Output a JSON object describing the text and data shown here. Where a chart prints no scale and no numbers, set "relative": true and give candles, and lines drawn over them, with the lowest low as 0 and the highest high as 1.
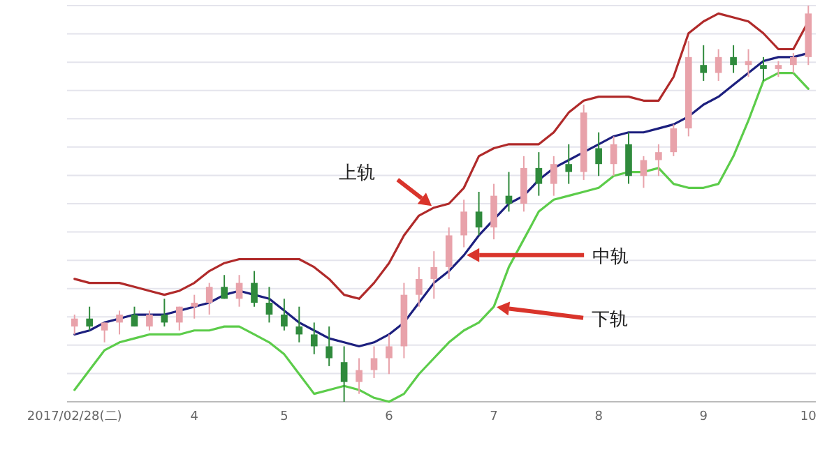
{
  "chart_data": {
    "type": "candlestick",
    "relative": true,
    "grid": "y",
    "categories": [
      "2017/02/28(二)",
      null,
      null,
      null,
      null,
      null,
      null,
      null,
      "4",
      null,
      null,
      null,
      null,
      null,
      "5",
      null,
      null,
      null,
      null,
      null,
      null,
      "6",
      null,
      null,
      null,
      null,
      null,
      null,
      "7",
      null,
      null,
      null,
      null,
      null,
      null,
      "8",
      null,
      null,
      null,
      null,
      null,
      null,
      "9",
      null,
      null,
      null,
      null,
      null,
      null,
      "10"
    ],
    "ohlc": [
      [
        0.19,
        0.22,
        0.17,
        0.21
      ],
      [
        0.21,
        0.24,
        0.18,
        0.19
      ],
      [
        0.18,
        0.2,
        0.15,
        0.2
      ],
      [
        0.2,
        0.23,
        0.17,
        0.22
      ],
      [
        0.22,
        0.24,
        0.19,
        0.19
      ],
      [
        0.19,
        0.23,
        0.18,
        0.22
      ],
      [
        0.22,
        0.26,
        0.19,
        0.2
      ],
      [
        0.2,
        0.24,
        0.18,
        0.24
      ],
      [
        0.24,
        0.27,
        0.21,
        0.25
      ],
      [
        0.25,
        0.3,
        0.22,
        0.29
      ],
      [
        0.29,
        0.32,
        0.26,
        0.26
      ],
      [
        0.26,
        0.32,
        0.24,
        0.3
      ],
      [
        0.3,
        0.33,
        0.24,
        0.25
      ],
      [
        0.25,
        0.29,
        0.2,
        0.22
      ],
      [
        0.22,
        0.26,
        0.18,
        0.19
      ],
      [
        0.19,
        0.24,
        0.15,
        0.17
      ],
      [
        0.17,
        0.2,
        0.12,
        0.14
      ],
      [
        0.14,
        0.19,
        0.09,
        0.11
      ],
      [
        0.1,
        0.14,
        0,
        0.05
      ],
      [
        0.05,
        0.11,
        0.02,
        0.08
      ],
      [
        0.08,
        0.14,
        0.06,
        0.11
      ],
      [
        0.11,
        0.17,
        0.07,
        0.14
      ],
      [
        0.14,
        0.3,
        0.11,
        0.27
      ],
      [
        0.27,
        0.34,
        0.24,
        0.31
      ],
      [
        0.31,
        0.38,
        0.26,
        0.34
      ],
      [
        0.34,
        0.44,
        0.31,
        0.42
      ],
      [
        0.42,
        0.51,
        0.39,
        0.48
      ],
      [
        0.48,
        0.53,
        0.42,
        0.44
      ],
      [
        0.44,
        0.55,
        0.41,
        0.52
      ],
      [
        0.52,
        0.58,
        0.48,
        0.5
      ],
      [
        0.5,
        0.62,
        0.48,
        0.59
      ],
      [
        0.59,
        0.63,
        0.52,
        0.55
      ],
      [
        0.55,
        0.62,
        0.52,
        0.6
      ],
      [
        0.6,
        0.65,
        0.55,
        0.58
      ],
      [
        0.58,
        0.75,
        0.56,
        0.73
      ],
      [
        0.64,
        0.68,
        0.57,
        0.6
      ],
      [
        0.6,
        0.67,
        0.57,
        0.65
      ],
      [
        0.65,
        0.68,
        0.55,
        0.57
      ],
      [
        0.57,
        0.62,
        0.54,
        0.61
      ],
      [
        0.61,
        0.65,
        0.57,
        0.63
      ],
      [
        0.63,
        0.7,
        0.62,
        0.69
      ],
      [
        0.69,
        0.91,
        0.67,
        0.87
      ],
      [
        0.85,
        0.9,
        0.81,
        0.83
      ],
      [
        0.83,
        0.89,
        0.81,
        0.87
      ],
      [
        0.87,
        0.9,
        0.83,
        0.85
      ],
      [
        0.85,
        0.89,
        0.82,
        0.86
      ],
      [
        0.85,
        0.87,
        0.81,
        0.84
      ],
      [
        0.84,
        0.86,
        0.82,
        0.85
      ],
      [
        0.85,
        0.88,
        0.83,
        0.87
      ],
      [
        0.87,
        1.0,
        0.85,
        0.98
      ]
    ],
    "series": [
      {
        "type": "line",
        "color": "#b02a2a",
        "values": [
          0.31,
          0.3,
          0.3,
          0.3,
          0.29,
          0.28,
          0.27,
          0.28,
          0.3,
          0.33,
          0.35,
          0.36,
          0.36,
          0.36,
          0.36,
          0.36,
          0.34,
          0.31,
          0.27,
          0.26,
          0.3,
          0.35,
          0.42,
          0.47,
          0.49,
          0.5,
          0.54,
          0.62,
          0.64,
          0.65,
          0.65,
          0.65,
          0.68,
          0.73,
          0.76,
          0.77,
          0.77,
          0.77,
          0.76,
          0.76,
          0.82,
          0.93,
          0.96,
          0.98,
          0.97,
          0.96,
          0.93,
          0.89,
          0.89,
          0.96
        ]
      },
      {
        "type": "line",
        "color": "#1c1f7e",
        "values": [
          0.17,
          0.18,
          0.2,
          0.21,
          0.22,
          0.22,
          0.22,
          0.23,
          0.24,
          0.25,
          0.27,
          0.28,
          0.27,
          0.26,
          0.23,
          0.2,
          0.18,
          0.16,
          0.15,
          0.14,
          0.15,
          0.17,
          0.2,
          0.25,
          0.3,
          0.33,
          0.37,
          0.42,
          0.46,
          0.5,
          0.52,
          0.56,
          0.59,
          0.61,
          0.63,
          0.65,
          0.67,
          0.68,
          0.68,
          0.69,
          0.7,
          0.72,
          0.75,
          0.77,
          0.8,
          0.83,
          0.86,
          0.87,
          0.87,
          0.88
        ]
      },
      {
        "type": "line",
        "color": "#5ccc4a",
        "values": [
          0.03,
          0.08,
          0.13,
          0.15,
          0.16,
          0.17,
          0.17,
          0.17,
          0.18,
          0.18,
          0.19,
          0.19,
          0.17,
          0.15,
          0.12,
          0.07,
          0.02,
          0.03,
          0.04,
          0.03,
          0.01,
          0,
          0.02,
          0.07,
          0.11,
          0.15,
          0.18,
          0.2,
          0.24,
          0.34,
          0.41,
          0.48,
          0.51,
          0.52,
          0.53,
          0.54,
          0.57,
          0.58,
          0.58,
          0.59,
          0.55,
          0.54,
          0.54,
          0.55,
          0.62,
          0.71,
          0.81,
          0.83,
          0.83,
          0.79
        ]
      }
    ],
    "annotations": [
      "上轨",
      "中轨",
      "下轨"
    ]
  }
}
